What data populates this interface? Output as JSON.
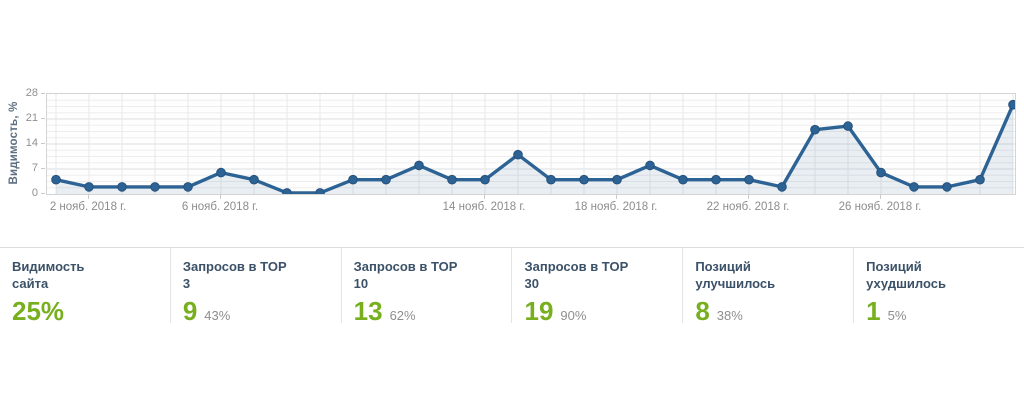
{
  "colors": {
    "line": "#2d6394",
    "marker": "#2d6394",
    "area_fill": "rgba(45,99,148,0.10)",
    "grid_minor": "#ededed",
    "grid_major": "#dcdfe2",
    "grid_vertical": "#e8e8e8",
    "plot_border": "#d4d4d4",
    "accent_green": "#77af1e",
    "card_title": "#3b5168",
    "axis_text": "#8c8c8c"
  },
  "chart_data": {
    "type": "line",
    "series_name": "Видимость",
    "x": [
      1,
      2,
      3,
      4,
      5,
      6,
      7,
      8,
      9,
      10,
      11,
      12,
      13,
      14,
      15,
      16,
      17,
      18,
      19,
      20,
      21,
      22,
      23,
      24,
      25,
      26,
      27,
      28,
      29,
      30
    ],
    "values": [
      4,
      2,
      2,
      2,
      2,
      6,
      4,
      0.3,
      0.3,
      4,
      4,
      8,
      4,
      4,
      11,
      4,
      4,
      4,
      8,
      4,
      4,
      4,
      2,
      18,
      19,
      6,
      2,
      2,
      4,
      25
    ],
    "title": "",
    "xlabel": "",
    "ylabel": "Видимость, %",
    "ylim": [
      0,
      28
    ],
    "y_ticks": [
      28,
      21,
      14,
      7,
      0
    ],
    "y_minor_step": 1.75,
    "grid": "on",
    "legend": "none",
    "x_tick_labels": [
      {
        "day": 2,
        "label": "2 нояб. 2018 г."
      },
      {
        "day": 6,
        "label": "6 нояб. 2018 г."
      },
      {
        "day": 14,
        "label": "14 нояб. 2018 г."
      },
      {
        "day": 18,
        "label": "18 нояб. 2018 г."
      },
      {
        "day": 22,
        "label": "22 нояб. 2018 г."
      },
      {
        "day": 26,
        "label": "26 нояб. 2018 г."
      }
    ]
  },
  "cards": [
    {
      "title": "Видимость сайта",
      "value": "25%",
      "percent": ""
    },
    {
      "title": "Запросов в TOP 3",
      "value": "9",
      "percent": "43%"
    },
    {
      "title": "Запросов в TOP 10",
      "value": "13",
      "percent": "62%"
    },
    {
      "title": "Запросов в TOP 30",
      "value": "19",
      "percent": "90%"
    },
    {
      "title": "Позиций улучшилось",
      "value": "8",
      "percent": "38%"
    },
    {
      "title": "Позиций ухудшилось",
      "value": "1",
      "percent": "5%"
    }
  ]
}
